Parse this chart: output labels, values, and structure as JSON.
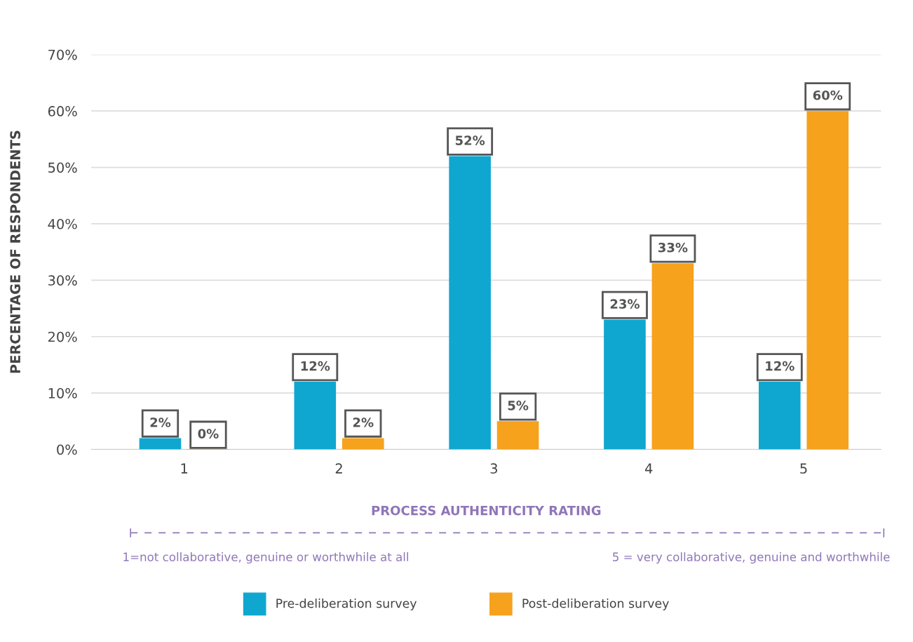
{
  "chart_data": {
    "type": "bar",
    "ylabel": "PERCENTAGE OF RESPONDENTS",
    "xlabel": "PROCESS AUTHENTICITY RATING",
    "categories": [
      "1",
      "2",
      "3",
      "4",
      "5"
    ],
    "series": [
      {
        "name": "Pre-deliberation survey",
        "color": "#0fa7d0",
        "values": [
          2,
          12,
          52,
          23,
          12
        ],
        "value_labels": [
          "2%",
          "12%",
          "52%",
          "23%",
          "12%"
        ]
      },
      {
        "name": "Post-deliberation survey",
        "color": "#f6a21c",
        "values": [
          0,
          2,
          5,
          33,
          60
        ],
        "value_labels": [
          "0%",
          "2%",
          "5%",
          "33%",
          "60%"
        ]
      }
    ],
    "ylim": [
      0,
      70
    ],
    "yticks": [
      {
        "value": 0,
        "label": "0%"
      },
      {
        "value": 10,
        "label": "10%"
      },
      {
        "value": 20,
        "label": "20%"
      },
      {
        "value": 30,
        "label": "30%"
      },
      {
        "value": 40,
        "label": "40%"
      },
      {
        "value": 50,
        "label": "50%"
      },
      {
        "value": 60,
        "label": "60%"
      },
      {
        "value": 70,
        "label": "70%"
      }
    ],
    "grid": "y",
    "legend": "bottom",
    "annotations": [
      "1=not collaborative, genuine or worthwhile at all",
      "5 = very collaborative, genuine and worthwhile"
    ]
  }
}
